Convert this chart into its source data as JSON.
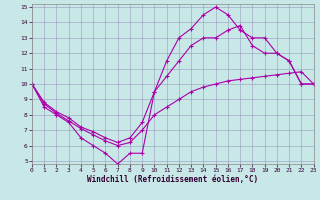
{
  "xlabel": "Windchill (Refroidissement éolien,°C)",
  "xlim": [
    0,
    23
  ],
  "ylim": [
    5,
    15
  ],
  "yticks": [
    5,
    6,
    7,
    8,
    9,
    10,
    11,
    12,
    13,
    14,
    15
  ],
  "xticks": [
    0,
    1,
    2,
    3,
    4,
    5,
    6,
    7,
    8,
    9,
    10,
    11,
    12,
    13,
    14,
    15,
    16,
    17,
    18,
    19,
    20,
    21,
    22,
    23
  ],
  "background_color": "#c8e8e8",
  "grid_color": "#9999bb",
  "line_color": "#aa00aa",
  "line1_x": [
    0,
    1,
    2,
    3,
    4,
    5,
    6,
    7,
    8,
    9,
    10,
    11,
    12,
    13,
    14,
    15,
    16,
    17,
    18,
    19,
    20,
    21,
    22,
    23
  ],
  "line1_y": [
    10,
    8.5,
    8.0,
    7.5,
    6.5,
    6.0,
    5.5,
    4.8,
    5.5,
    5.5,
    9.5,
    11.5,
    13.0,
    13.6,
    14.5,
    15.0,
    14.5,
    13.5,
    13.0,
    13.0,
    12.0,
    11.5,
    10.0,
    10.0
  ],
  "line2_x": [
    0,
    1,
    2,
    3,
    4,
    5,
    6,
    7,
    8,
    9,
    10,
    11,
    12,
    13,
    14,
    15,
    16,
    17,
    18,
    19,
    20,
    21,
    22,
    23
  ],
  "line2_y": [
    10,
    8.8,
    8.2,
    7.8,
    7.2,
    6.9,
    6.5,
    6.2,
    6.5,
    7.5,
    9.5,
    10.5,
    11.5,
    12.5,
    13.0,
    13.0,
    13.5,
    13.8,
    12.5,
    12.0,
    12.0,
    11.5,
    10.0,
    10.0
  ],
  "line3_x": [
    0,
    1,
    2,
    3,
    4,
    5,
    6,
    7,
    8,
    9,
    10,
    11,
    12,
    13,
    14,
    15,
    16,
    17,
    18,
    19,
    20,
    21,
    22,
    23
  ],
  "line3_y": [
    10,
    8.7,
    8.1,
    7.6,
    7.1,
    6.7,
    6.3,
    6.0,
    6.2,
    7.0,
    8.0,
    8.5,
    9.0,
    9.5,
    9.8,
    10.0,
    10.2,
    10.3,
    10.4,
    10.5,
    10.6,
    10.7,
    10.8,
    10.0
  ]
}
